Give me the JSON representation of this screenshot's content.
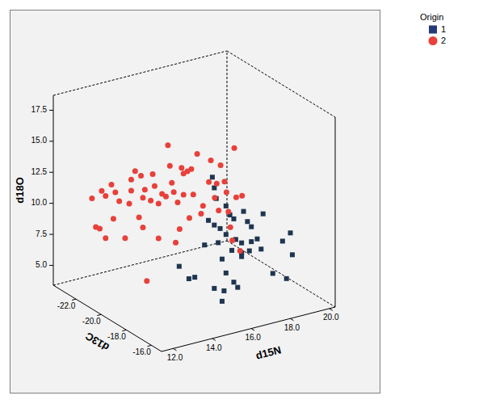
{
  "chart_data": {
    "type": "scatter3d",
    "x_label": "d15N",
    "y_label": "d13C",
    "z_label": "d18O",
    "legend_title": "Origin",
    "legend": "top right",
    "xlim": [
      11.4,
      20.3
    ],
    "xticks": [
      {
        "value": 12,
        "label": "12.0"
      },
      {
        "value": 14,
        "label": "14.0"
      },
      {
        "value": 16,
        "label": "16.0"
      },
      {
        "value": 18,
        "label": "18.0"
      },
      {
        "value": 20,
        "label": "20.0"
      }
    ],
    "ylim": [
      -23.8,
      -15.2
    ],
    "yticks": [
      {
        "value": -22,
        "label": "-22.0"
      },
      {
        "value": -20,
        "label": "-20.0"
      },
      {
        "value": -18,
        "label": "-18.0"
      },
      {
        "value": -16,
        "label": "-16.0"
      }
    ],
    "zlim": [
      3.4,
      18.7
    ],
    "zticks": [
      {
        "value": 5,
        "label": "5.0"
      },
      {
        "value": 7.5,
        "label": "7.5"
      },
      {
        "value": 10,
        "label": "10.0"
      },
      {
        "value": 12.5,
        "label": "12.5"
      },
      {
        "value": 15,
        "label": "15.0"
      },
      {
        "value": 17.5,
        "label": "17.5"
      }
    ],
    "series": [
      {
        "name": "1",
        "color": "#1f3550",
        "marker": "square",
        "x": [
          13.4,
          13.9,
          14.2,
          14.7,
          14.9,
          15.1,
          15.2,
          15.2,
          15.3,
          15.2,
          15.4,
          15.5,
          15.6,
          15.6,
          15.7,
          15.8,
          15.8,
          16.0,
          16.1,
          16.2,
          16.3,
          16.4,
          16.6,
          16.6,
          16.6,
          16.7,
          16.9,
          17.0,
          17.1,
          17.4,
          17.6,
          17.7,
          18.2,
          18.7,
          18.9,
          19.1,
          19.2,
          15.8,
          16.2,
          17.1
        ],
        "y": [
          -16.9,
          -16.9,
          -16.9,
          -16.9,
          -16.9,
          -16.9,
          -16.9,
          -16.9,
          -16.9,
          -16.9,
          -16.9,
          -16.9,
          -16.9,
          -16.9,
          -16.9,
          -16.9,
          -16.9,
          -16.9,
          -16.9,
          -16.9,
          -16.9,
          -16.9,
          -16.9,
          -16.9,
          -16.9,
          -16.9,
          -16.9,
          -16.9,
          -16.9,
          -16.9,
          -16.9,
          -16.9,
          -16.9,
          -16.9,
          -16.9,
          -16.9,
          -16.9,
          -16.9,
          -16.9,
          -16.9
        ],
        "z": [
          8.4,
          7.2,
          7.2,
          9.6,
          11.5,
          14.9,
          14.0,
          11.0,
          13.1,
          5.9,
          9.5,
          10.6,
          8.1,
          4.7,
          5.5,
          6.9,
          12.3,
          11.5,
          8.6,
          6.0,
          9.4,
          5.5,
          9.0,
          7.9,
          8.2,
          11.5,
          10.6,
          8.2,
          8.9,
          9.0,
          8.1,
          10.9,
          5.9,
          8.3,
          5.2,
          8.8,
          7.0,
          10.0,
          11.1,
          10.1
        ]
      },
      {
        "name": "2",
        "color": "#e8403a",
        "marker": "circle",
        "x": [
          12.8,
          13.0,
          13.2,
          13.3,
          13.5,
          13.5,
          13.8,
          13.9,
          14.0,
          14.2,
          14.5,
          13.1,
          13.2,
          13.2,
          13.4,
          13.6,
          13.7,
          13.8,
          13.8,
          13.9,
          14.2,
          14.3,
          14.4,
          14.6,
          14.6,
          14.0,
          14.2,
          14.4,
          14.5,
          14.6,
          14.7,
          14.8,
          14.9,
          15.0,
          15.2,
          15.3,
          15.3,
          15.5,
          15.7,
          15.8,
          16.0,
          16.2,
          16.3,
          16.6,
          16.7,
          16.9,
          17.0,
          17.1,
          17.2,
          17.4,
          17.5,
          17.6,
          17.7,
          17.8,
          17.9,
          18.0,
          18.3,
          18.2,
          15.1,
          15.6
        ],
        "y": [
          -22.9,
          -22.9,
          -22.9,
          -22.9,
          -22.9,
          -22.9,
          -22.9,
          -22.9,
          -22.9,
          -22.9,
          -22.9,
          -20.4,
          -20.4,
          -20.4,
          -20.4,
          -20.4,
          -20.4,
          -20.4,
          -20.4,
          -20.4,
          -20.4,
          -20.4,
          -20.4,
          -20.4,
          -20.4,
          -20.4,
          -19.5,
          -19.5,
          -19.5,
          -19.5,
          -19.5,
          -19.5,
          -19.5,
          -19.5,
          -19.5,
          -19.5,
          -19.5,
          -19.5,
          -19.5,
          -19.5,
          -19.5,
          -19.5,
          -19.5,
          -19.5,
          -19.5,
          -19.5,
          -19.5,
          -19.5,
          -19.5,
          -19.5,
          -19.5,
          -19.5,
          -19.5,
          -19.5,
          -19.5,
          -19.5,
          -19.5,
          -19.5,
          -19.5,
          -19.5
        ],
        "z": [
          10.4,
          8.0,
          7.8,
          10.8,
          10.3,
          6.9,
          11.1,
          8.3,
          10.4,
          9.6,
          6.5,
          11.4,
          12.4,
          13.3,
          13.9,
          10.1,
          13.4,
          11.6,
          9.2,
          12.2,
          11.2,
          13.3,
          12.3,
          8.0,
          10.8,
          4.8,
          12.3,
          12.0,
          16.1,
          14.4,
          13.0,
          12.2,
          8.1,
          11.3,
          14.0,
          13.5,
          11.8,
          13.6,
          13.7,
          11.6,
          14.8,
          9.9,
          10.5,
          12.3,
          14.0,
          10.9,
          12.0,
          9.8,
          13.4,
          12.0,
          11.1,
          9.5,
          8.2,
          7.1,
          14.5,
          10.5,
          10.5,
          6.1,
          9.1,
          9.8
        ]
      }
    ]
  }
}
